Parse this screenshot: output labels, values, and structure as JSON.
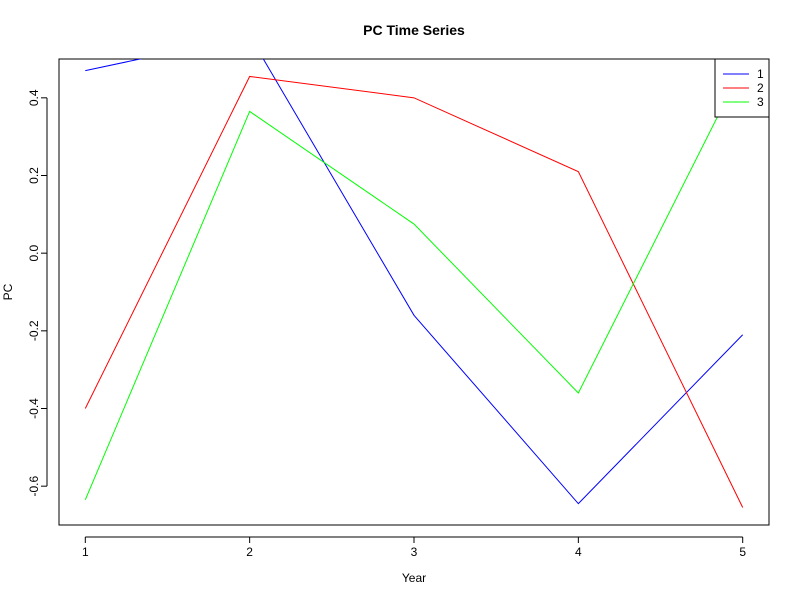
{
  "chart_data": {
    "type": "line",
    "title": "PC Time Series",
    "xlabel": "Year",
    "ylabel": "PC",
    "x": [
      1,
      2,
      3,
      4,
      5
    ],
    "xlim": [
      0.84,
      5.16
    ],
    "ylim": [
      -0.7,
      0.5
    ],
    "xticks": [
      "1",
      "2",
      "3",
      "4",
      "5"
    ],
    "yticks": [
      "-0.6",
      "-0.4",
      "-0.2",
      "0.0",
      "0.2",
      "0.4"
    ],
    "ytick_values": [
      -0.6,
      -0.4,
      -0.2,
      0.0,
      0.2,
      0.4
    ],
    "grid": false,
    "legend_position": "top-right",
    "series": [
      {
        "name": "1",
        "color": "#0000FF",
        "values": [
          0.47,
          0.56,
          -0.16,
          -0.645,
          -0.21
        ]
      },
      {
        "name": "2",
        "color": "#FF0000",
        "values": [
          -0.4,
          0.455,
          0.4,
          0.21,
          -0.655
        ]
      },
      {
        "name": "3",
        "color": "#00FF00",
        "values": [
          -0.635,
          0.365,
          0.075,
          -0.36,
          0.48
        ]
      }
    ]
  }
}
